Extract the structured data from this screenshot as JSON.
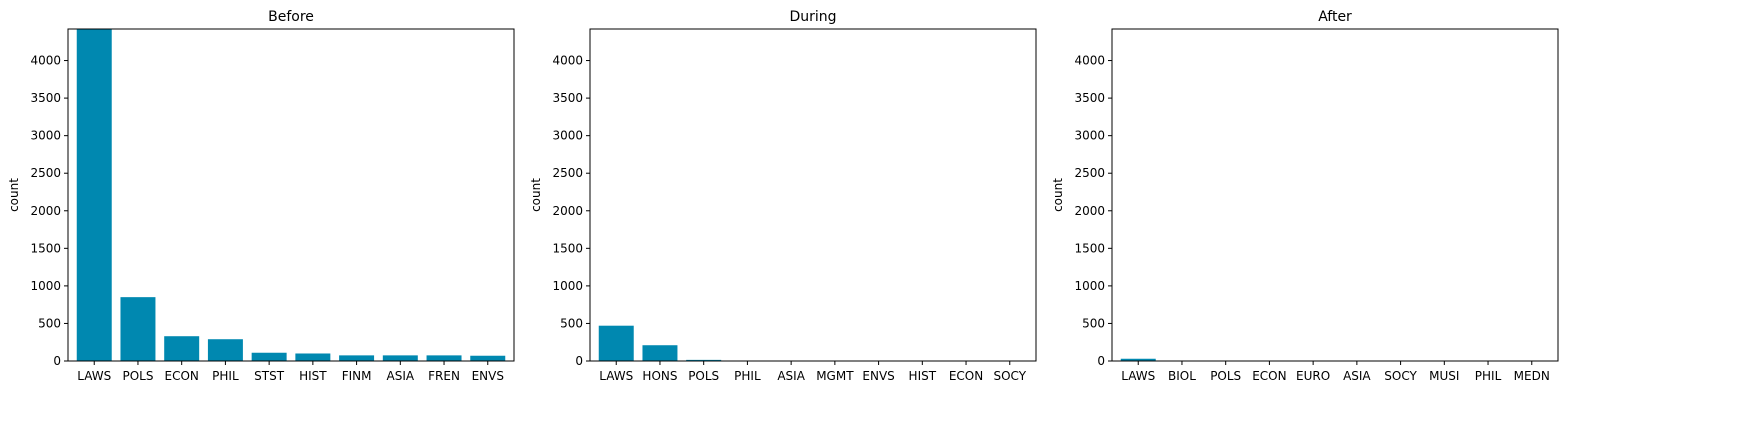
{
  "figure": {
    "bar_color": "#0088b0"
  },
  "chart_data": [
    {
      "type": "bar",
      "title": "Before",
      "xlabel": "",
      "ylabel": "count",
      "ylim": [
        0,
        4420
      ],
      "yticks": [
        0,
        500,
        1000,
        1500,
        2000,
        2500,
        3000,
        3500,
        4000
      ],
      "categories": [
        "LAWS",
        "POLS",
        "ECON",
        "PHIL",
        "STST",
        "HIST",
        "FINM",
        "ASIA",
        "FREN",
        "ENVS"
      ],
      "values": [
        4420,
        850,
        330,
        290,
        110,
        100,
        75,
        75,
        75,
        70
      ]
    },
    {
      "type": "bar",
      "title": "During",
      "xlabel": "",
      "ylabel": "count",
      "ylim": [
        0,
        4420
      ],
      "yticks": [
        0,
        500,
        1000,
        1500,
        2000,
        2500,
        3000,
        3500,
        4000
      ],
      "categories": [
        "LAWS",
        "HONS",
        "POLS",
        "PHIL",
        "ASIA",
        "MGMT",
        "ENVS",
        "HIST",
        "ECON",
        "SOCY"
      ],
      "values": [
        470,
        210,
        15,
        5,
        3,
        3,
        2,
        2,
        2,
        2
      ]
    },
    {
      "type": "bar",
      "title": "After",
      "xlabel": "",
      "ylabel": "count",
      "ylim": [
        0,
        4420
      ],
      "yticks": [
        0,
        500,
        1000,
        1500,
        2000,
        2500,
        3000,
        3500,
        4000
      ],
      "categories": [
        "LAWS",
        "BIOL",
        "POLS",
        "ECON",
        "EURO",
        "ASIA",
        "SOCY",
        "MUSI",
        "PHIL",
        "MEDN"
      ],
      "values": [
        30,
        4,
        3,
        2,
        2,
        2,
        2,
        2,
        2,
        2
      ]
    }
  ]
}
